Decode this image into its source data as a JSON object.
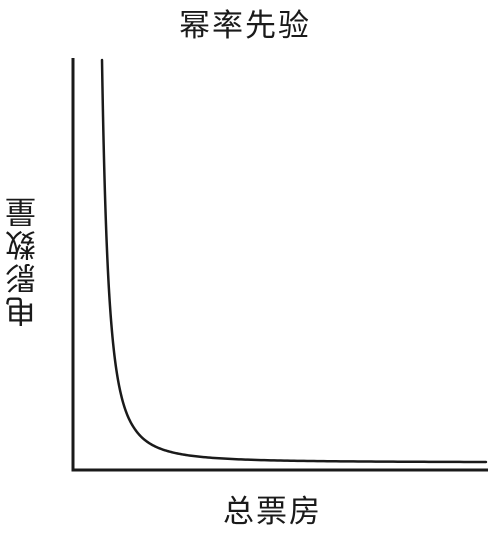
{
  "chart_data": {
    "type": "line",
    "title": "幂率先验",
    "xlabel": "总票房",
    "ylabel": "电影数量",
    "grid": false,
    "legend": "none",
    "ticks": "none",
    "curve_shape": "power-law",
    "series": [
      {
        "color": "#1a1a1a",
        "x": [
          1.0,
          1.05,
          1.1,
          1.2,
          1.3,
          1.5,
          1.75,
          2.0,
          2.5,
          3.0,
          3.5,
          4.0,
          5.0,
          6.0,
          7.0,
          8.0,
          10.0,
          12.0,
          15.0,
          18.0,
          22.0,
          26.0,
          30.0
        ],
        "y": [
          1.0,
          0.907,
          0.826,
          0.694,
          0.592,
          0.444,
          0.327,
          0.25,
          0.16,
          0.111,
          0.082,
          0.0625,
          0.04,
          0.0278,
          0.0204,
          0.0156,
          0.01,
          0.0069,
          0.0044,
          0.0031,
          0.0021,
          0.0015,
          0.0011
        ]
      }
    ]
  }
}
